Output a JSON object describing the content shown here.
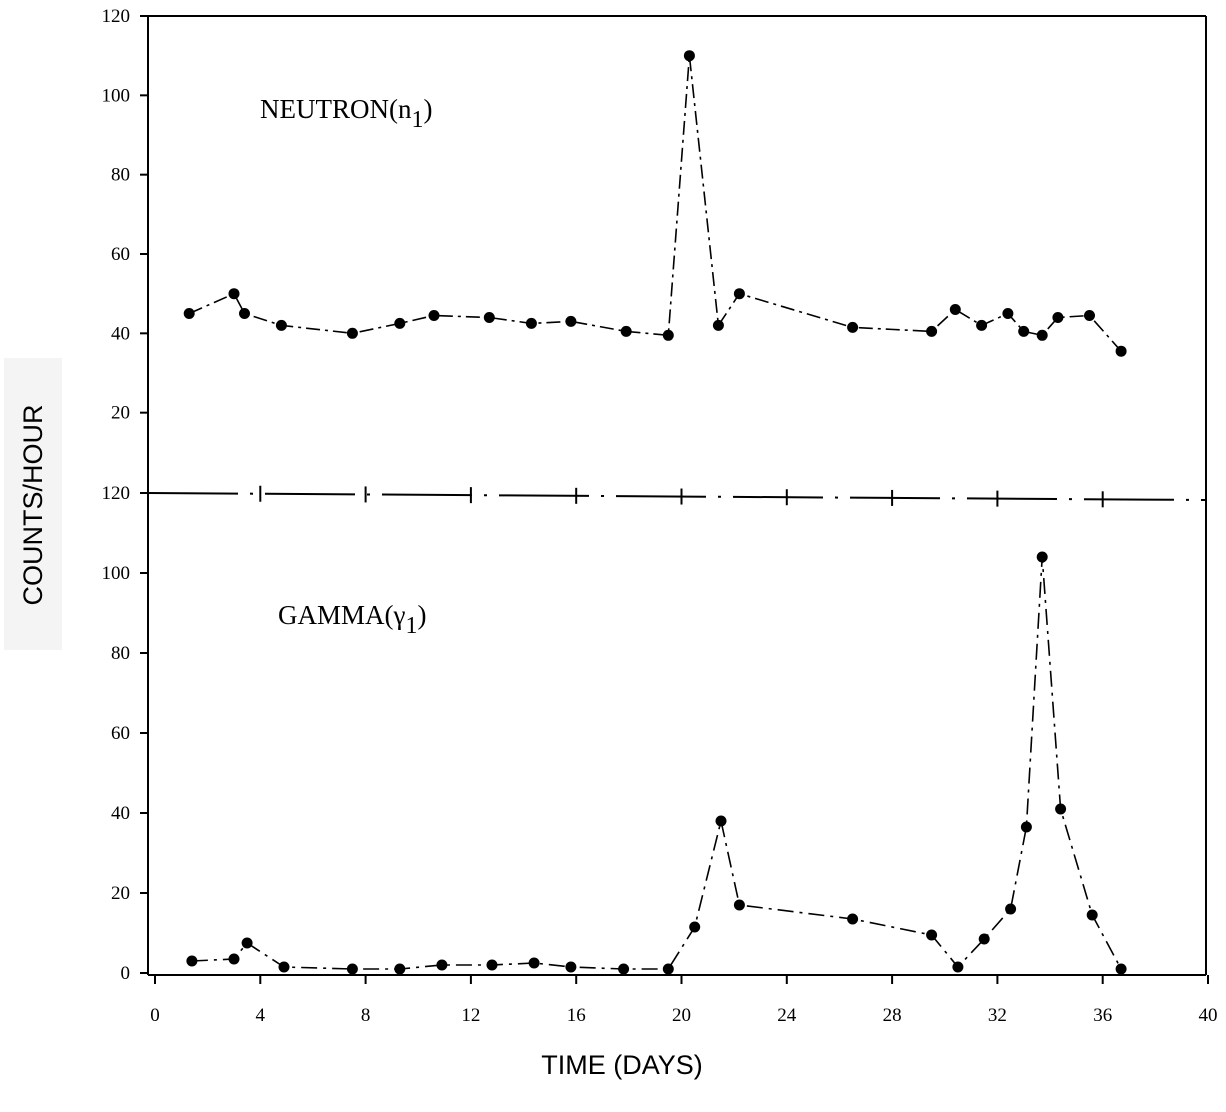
{
  "chart_data": {
    "type": "line",
    "xlabel": "TIME (DAYS)",
    "ylabel": "COUNTS/HOUR",
    "xlim": [
      0,
      40
    ],
    "x_ticks": [
      "0",
      "4",
      "8",
      "12",
      "16",
      "20",
      "24",
      "28",
      "32",
      "36",
      "40"
    ],
    "grid": false,
    "panels": [
      {
        "label_main": "NEUTRON(n",
        "label_sub": "1",
        "label_close": ")",
        "ylim": [
          0,
          120
        ],
        "y_ticks": [
          "20",
          "40",
          "60",
          "80",
          "100",
          "120"
        ],
        "series": [
          {
            "x": [
              1.3,
              3.0,
              3.4,
              4.8,
              7.5,
              9.3,
              10.6,
              12.7,
              14.3,
              15.8,
              17.9,
              19.5,
              20.3,
              21.4,
              22.2,
              26.5,
              29.5,
              30.4,
              31.4,
              32.4,
              33.0,
              33.7,
              34.3,
              35.5,
              36.7
            ],
            "y": [
              45,
              50,
              45,
              42,
              40,
              42.5,
              44.5,
              44,
              42.5,
              43,
              40.5,
              39.5,
              110,
              42,
              50,
              41.5,
              40.5,
              46,
              42,
              45,
              40.5,
              39.5,
              44,
              44.5,
              35.5
            ]
          }
        ]
      },
      {
        "label_main": "GAMMA(γ",
        "label_sub": "1",
        "label_close": ")",
        "ylim": [
          0,
          120
        ],
        "y_ticks": [
          "0",
          "20",
          "40",
          "60",
          "80",
          "100",
          "120"
        ],
        "series": [
          {
            "x": [
              1.4,
              3.0,
              3.5,
              4.9,
              7.5,
              9.3,
              10.9,
              12.8,
              14.4,
              15.8,
              17.8,
              19.5,
              20.5,
              21.5,
              22.2,
              26.5,
              29.5,
              30.5,
              31.5,
              32.5,
              33.1,
              33.7,
              34.4,
              35.6,
              36.7
            ],
            "y": [
              3,
              3.5,
              7.5,
              1.5,
              1,
              1,
              2,
              2,
              2.5,
              1.5,
              1,
              1,
              11.5,
              38,
              17,
              13.5,
              9.5,
              1.5,
              8.5,
              16,
              36.5,
              104,
              41,
              14.5,
              1
            ]
          }
        ]
      }
    ]
  }
}
